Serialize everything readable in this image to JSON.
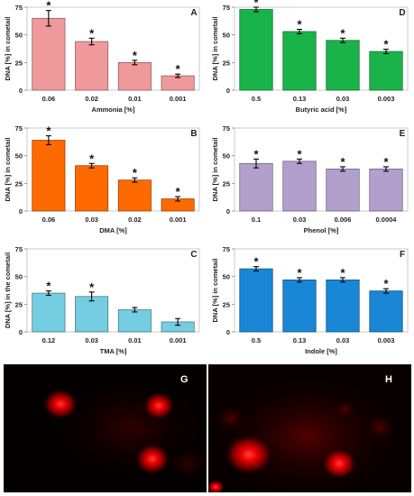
{
  "chart_data": [
    {
      "type": "bar",
      "panel_letter": "A",
      "categories": [
        "0.06",
        "0.02",
        "0.01",
        "0.001"
      ],
      "values": [
        65,
        44,
        25,
        13
      ],
      "errors": [
        7,
        3,
        2,
        1.5
      ],
      "significant": [
        true,
        true,
        true,
        true
      ],
      "bar_color": "#f0999a",
      "xlabel": "Ammonia [%]",
      "ylabel": "DNA [%] in cometail",
      "ylim": [
        0,
        75
      ],
      "yticks": [
        "0",
        "25",
        "50",
        "75"
      ]
    },
    {
      "type": "bar",
      "panel_letter": "D",
      "categories": [
        "0.5",
        "0.13",
        "0.03",
        "0.003"
      ],
      "values": [
        73,
        53,
        45,
        35
      ],
      "errors": [
        2,
        2,
        2,
        2
      ],
      "significant": [
        true,
        true,
        true,
        true
      ],
      "bar_color": "#1ab34a",
      "xlabel": "Butyric acid [%]",
      "ylabel": "DNA [%] in cometail",
      "ylim": [
        0,
        75
      ],
      "yticks": [
        "0",
        "25",
        "50",
        "75"
      ]
    },
    {
      "type": "bar",
      "panel_letter": "B",
      "categories": [
        "0.06",
        "0.03",
        "0.02",
        "0.001"
      ],
      "values": [
        64,
        41,
        28,
        11
      ],
      "errors": [
        4,
        2,
        2,
        2
      ],
      "significant": [
        true,
        true,
        true,
        true
      ],
      "bar_color": "#ff6a00",
      "xlabel": "DMA [%]",
      "ylabel": "DNA [%] in cometail",
      "ylim": [
        0,
        75
      ],
      "yticks": [
        "0",
        "25",
        "50",
        "75"
      ]
    },
    {
      "type": "bar",
      "panel_letter": "E",
      "categories": [
        "0.1",
        "0.03",
        "0.006",
        "0.0004"
      ],
      "values": [
        43,
        45,
        38,
        38
      ],
      "errors": [
        4,
        2,
        2,
        2
      ],
      "significant": [
        true,
        true,
        true,
        true
      ],
      "bar_color": "#b29fcc",
      "xlabel": "Phenol [%]",
      "ylabel": "DNA [%] in cometail",
      "ylim": [
        0,
        75
      ],
      "yticks": [
        "0",
        "25",
        "50",
        "75"
      ]
    },
    {
      "type": "bar",
      "panel_letter": "C",
      "categories": [
        "0.12",
        "0.03",
        "0.01",
        "0.001"
      ],
      "values": [
        35,
        32,
        20,
        9
      ],
      "errors": [
        2,
        4,
        2,
        3
      ],
      "significant": [
        true,
        true,
        false,
        false
      ],
      "bar_color": "#74cde0",
      "xlabel": "TMA [%]",
      "ylabel": "DNA [%] in the cometail",
      "ylim": [
        0,
        75
      ],
      "yticks": [
        "0",
        "25",
        "50",
        "75"
      ]
    },
    {
      "type": "bar",
      "panel_letter": "F",
      "categories": [
        "0.5",
        "0.13",
        "0.03",
        "0.003"
      ],
      "values": [
        57,
        47,
        47,
        37
      ],
      "errors": [
        2,
        2,
        2,
        2
      ],
      "significant": [
        true,
        true,
        true,
        true
      ],
      "bar_color": "#1a86d6",
      "xlabel": "Indole [%]",
      "ylabel": "DNA [%] in cometail",
      "ylim": [
        0,
        75
      ],
      "yticks": [
        "0",
        "25",
        "50",
        "75"
      ]
    }
  ],
  "significance_marker": "*",
  "micrographs": [
    {
      "letter": "G"
    },
    {
      "letter": "H"
    }
  ]
}
